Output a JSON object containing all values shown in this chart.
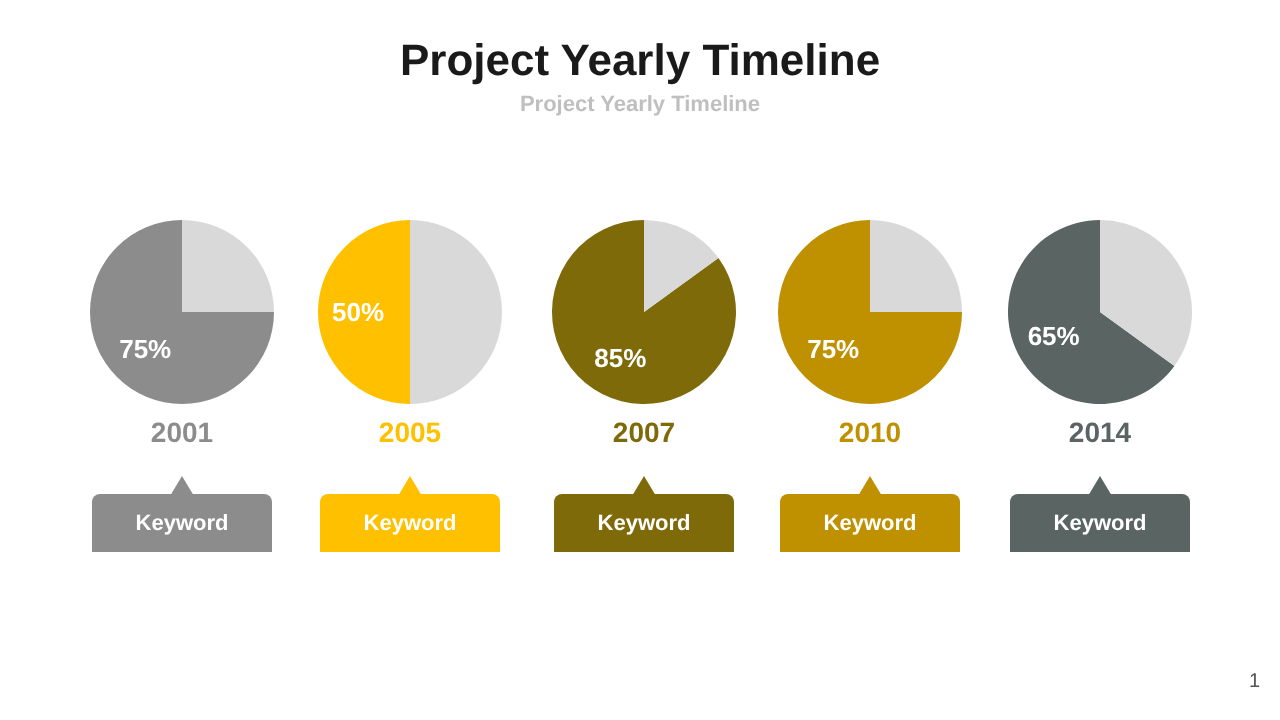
{
  "chart_data": [
    {
      "type": "other",
      "title": "Project Yearly Timeline",
      "subtitle": "Project Yearly Timeline",
      "annotations": [
        "1"
      ]
    },
    {
      "type": "pie",
      "title": "2001",
      "categories": [
        null,
        null
      ],
      "values": [
        75,
        25
      ],
      "colors": [
        "#8c8c8c",
        "#d9d9d9"
      ],
      "value_labels": [
        "75%",
        null
      ],
      "annotations": [
        "Keyword"
      ]
    },
    {
      "type": "pie",
      "title": "2005",
      "categories": [
        null,
        null
      ],
      "values": [
        50,
        50
      ],
      "colors": [
        "#ffc000",
        "#d9d9d9"
      ],
      "value_labels": [
        "50%",
        null
      ],
      "annotations": [
        "Keyword"
      ]
    },
    {
      "type": "pie",
      "title": "2007",
      "categories": [
        null,
        null
      ],
      "values": [
        85,
        15
      ],
      "colors": [
        "#7f6a0a",
        "#d9d9d9"
      ],
      "value_labels": [
        "85%",
        null
      ],
      "annotations": [
        "Keyword"
      ]
    },
    {
      "type": "pie",
      "title": "2010",
      "categories": [
        null,
        null
      ],
      "values": [
        75,
        25
      ],
      "colors": [
        "#bf9000",
        "#d9d9d9"
      ],
      "value_labels": [
        "75%",
        null
      ],
      "annotations": [
        "Keyword"
      ]
    },
    {
      "type": "pie",
      "title": "2014",
      "categories": [
        null,
        null
      ],
      "values": [
        65,
        35
      ],
      "colors": [
        "#5a6462",
        "#d9d9d9"
      ],
      "value_labels": [
        "65%",
        null
      ],
      "annotations": [
        "Keyword"
      ]
    }
  ]
}
